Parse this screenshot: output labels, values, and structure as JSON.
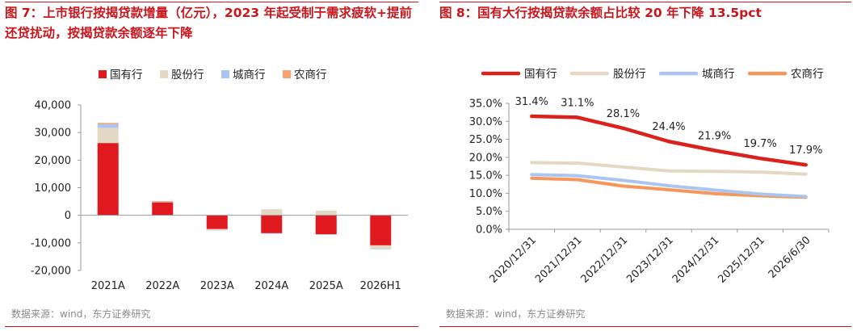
{
  "left": {
    "title": "图 7：上市银行按揭贷款增量（亿元），2023 年起受制于需求疲软+提前还贷扰动，按揭贷款余额逐年下降",
    "source": "数据来源：wind，东方证券研究",
    "chart_data": {
      "type": "bar",
      "stacked": true,
      "categories": [
        "2021A",
        "2022A",
        "2023A",
        "2024A",
        "2025A",
        "2026H1"
      ],
      "series": [
        {
          "name": "国有行",
          "color": "#e0191e",
          "values": [
            26200,
            4700,
            -5000,
            -6500,
            -6900,
            -10900
          ]
        },
        {
          "name": "股份行",
          "color": "#e3d8c3",
          "values": [
            5500,
            300,
            -300,
            2200,
            1700,
            -1200
          ]
        },
        {
          "name": "城商行",
          "color": "#a9c5f0",
          "values": [
            1400,
            100,
            -100,
            -100,
            -100,
            -50
          ]
        },
        {
          "name": "农商行",
          "color": "#f7a070",
          "values": [
            400,
            50,
            0,
            0,
            0,
            0
          ]
        }
      ],
      "ylim": [
        -20000,
        40000
      ],
      "yticks": [
        -20000,
        -10000,
        0,
        10000,
        20000,
        30000,
        40000
      ],
      "ytick_labels": [
        "-20,000",
        "-10,000",
        "0",
        "10,000",
        "20,000",
        "30,000",
        "40,000"
      ],
      "legend_position": "top",
      "grid": false
    }
  },
  "right": {
    "title": "图 8：国有大行按揭贷款余额占比较 20 年下降 13.5pct",
    "source": "数据来源：wind，东方证券研究",
    "chart_data": {
      "type": "line",
      "x": [
        "2020/12/31",
        "2021/12/31",
        "2022/12/31",
        "2023/12/31",
        "2024/12/31",
        "2025/12/31",
        "2026/6/30"
      ],
      "series": [
        {
          "name": "国有行",
          "color": "#d9221c",
          "values": [
            31.4,
            31.1,
            28.1,
            24.4,
            21.9,
            19.7,
            17.9
          ],
          "labels": [
            "31.4%",
            "31.1%",
            "28.1%",
            "24.4%",
            "21.9%",
            "19.7%",
            "17.9%"
          ]
        },
        {
          "name": "股份行",
          "color": "#e3d8c3",
          "values": [
            18.5,
            18.4,
            17.3,
            16.2,
            16.1,
            15.9,
            15.3
          ]
        },
        {
          "name": "城商行",
          "color": "#a9c5f0",
          "values": [
            15.2,
            14.9,
            13.6,
            12.1,
            10.9,
            9.8,
            9.1
          ]
        },
        {
          "name": "农商行",
          "color": "#f5975a",
          "values": [
            14.2,
            13.8,
            12.0,
            11.0,
            9.9,
            9.3,
            8.9
          ]
        }
      ],
      "ylim": [
        0,
        35
      ],
      "yticks": [
        0,
        5,
        10,
        15,
        20,
        25,
        30,
        35
      ],
      "ytick_labels": [
        "0.0%",
        "5.0%",
        "10.0%",
        "15.0%",
        "20.0%",
        "25.0%",
        "30.0%",
        "35.0%"
      ],
      "legend_position": "top",
      "grid": false
    }
  }
}
